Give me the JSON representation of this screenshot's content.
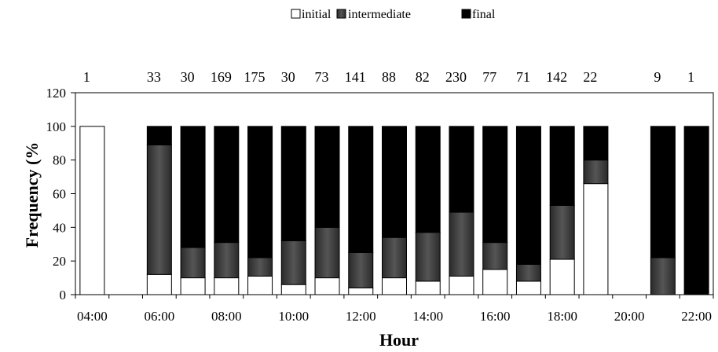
{
  "chart_data": {
    "type": "bar",
    "stacked": true,
    "title": "",
    "xlabel": "Hour",
    "ylabel": "Frequency (%",
    "ylim": [
      0,
      120
    ],
    "yticks": [
      0,
      20,
      40,
      60,
      80,
      100,
      120
    ],
    "x_tick_labels": [
      "04:00",
      "06:00",
      "08:00",
      "10:00",
      "12:00",
      "14:00",
      "16:00",
      "18:00",
      "20:00",
      "22:00"
    ],
    "legend_position": "top-center",
    "grid": false,
    "categories": [
      "04:00",
      "05:00",
      "06:00",
      "07:00",
      "08:00",
      "09:00",
      "10:00",
      "11:00",
      "12:00",
      "13:00",
      "14:00",
      "15:00",
      "16:00",
      "17:00",
      "18:00",
      "19:00",
      "20:00",
      "21:00",
      "22:00"
    ],
    "counts": [
      "1",
      "",
      "33",
      "30",
      "169",
      "175",
      "30",
      "73",
      "141",
      "88",
      "82",
      "230",
      "77",
      "71",
      "142",
      "22",
      "",
      "9",
      "1"
    ],
    "series": [
      {
        "name": "initial",
        "color": "#ffffff",
        "values": [
          100,
          null,
          12,
          10,
          10,
          11,
          6,
          10,
          4,
          10,
          8,
          11,
          15,
          8,
          21,
          66,
          null,
          0,
          0
        ]
      },
      {
        "name": "intermediate",
        "color": "#3a3a3a",
        "values": [
          0,
          null,
          77,
          18,
          21,
          11,
          26,
          30,
          21,
          24,
          29,
          38,
          16,
          10,
          32,
          14,
          null,
          22,
          0
        ]
      },
      {
        "name": "final",
        "color": "#000000",
        "values": [
          0,
          null,
          11,
          72,
          69,
          78,
          68,
          60,
          75,
          66,
          63,
          51,
          69,
          82,
          47,
          20,
          null,
          78,
          100
        ]
      }
    ]
  }
}
